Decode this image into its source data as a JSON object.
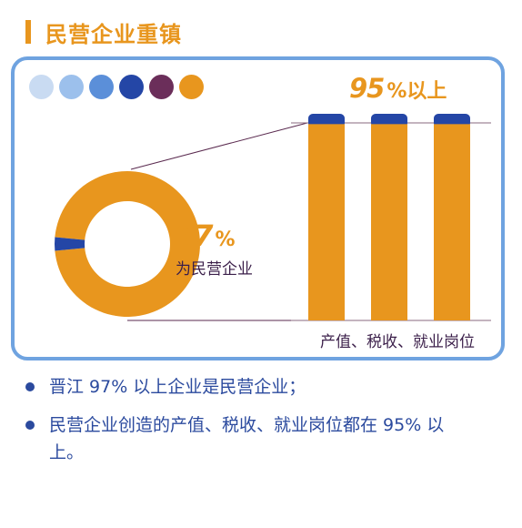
{
  "header": {
    "title": "民营企业重镇"
  },
  "colors": {
    "accent": "#e8961e",
    "dark_blue": "#2b4a9e",
    "frame_blue": "#6fa3e0",
    "palette": [
      "#c9dbf2",
      "#9cc0ec",
      "#5b8fd9",
      "#2446a6",
      "#6b2e5a",
      "#e8961e"
    ]
  },
  "chart_data": [
    {
      "type": "pie",
      "style": "donut",
      "slices": [
        {
          "label": "为民营企业",
          "value": 97,
          "color": "#e8961e"
        },
        {
          "label": "",
          "value": 3,
          "color": "#2446a6"
        }
      ],
      "value_label": "97",
      "value_unit": "%",
      "caption": "为民营企业"
    },
    {
      "type": "bar",
      "categories": [
        "产值",
        "税收",
        "就业岗位"
      ],
      "value_label": "95",
      "value_unit": "%以上",
      "xlabel": "产值、税收、就业岗位",
      "series": [
        {
          "values": [
            95,
            95,
            95
          ],
          "color": "#e8961e"
        },
        {
          "values": [
            5,
            5,
            5
          ],
          "color": "#2446a6"
        }
      ]
    }
  ],
  "bullets": [
    "晋江 97% 以上企业是民营企业；",
    "民营企业创造的产值、税收、就业岗位都在 95% 以上。"
  ]
}
